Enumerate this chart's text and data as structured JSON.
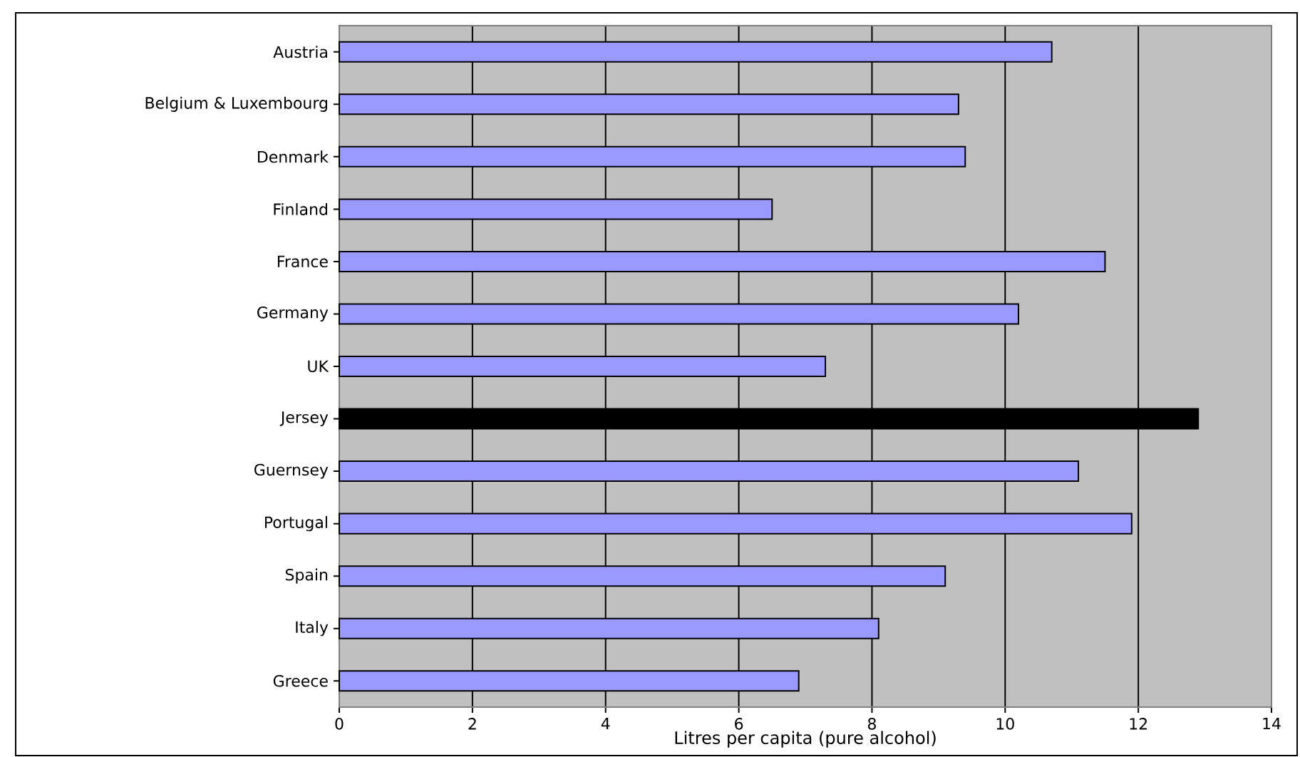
{
  "chart_data": {
    "type": "bar",
    "orientation": "horizontal",
    "categories": [
      "Austria",
      "Belgium & Luxembourg",
      "Denmark",
      "Finland",
      "France",
      "Germany",
      "UK",
      "Jersey",
      "Guernsey",
      "Portugal",
      "Spain",
      "Italy",
      "Greece"
    ],
    "values": [
      10.7,
      9.3,
      9.4,
      6.5,
      11.5,
      10.2,
      7.3,
      12.9,
      11.1,
      11.9,
      9.1,
      8.1,
      6.9
    ],
    "colors": [
      "#9999ff",
      "#9999ff",
      "#9999ff",
      "#9999ff",
      "#9999ff",
      "#9999ff",
      "#9999ff",
      "#000000",
      "#9999ff",
      "#9999ff",
      "#9999ff",
      "#9999ff",
      "#9999ff"
    ],
    "xlabel": "Litres per capita (pure alcohol)",
    "xlim": [
      0,
      14
    ],
    "xticks": [
      0,
      2,
      4,
      6,
      8,
      10,
      12,
      14
    ],
    "grid": "x"
  }
}
